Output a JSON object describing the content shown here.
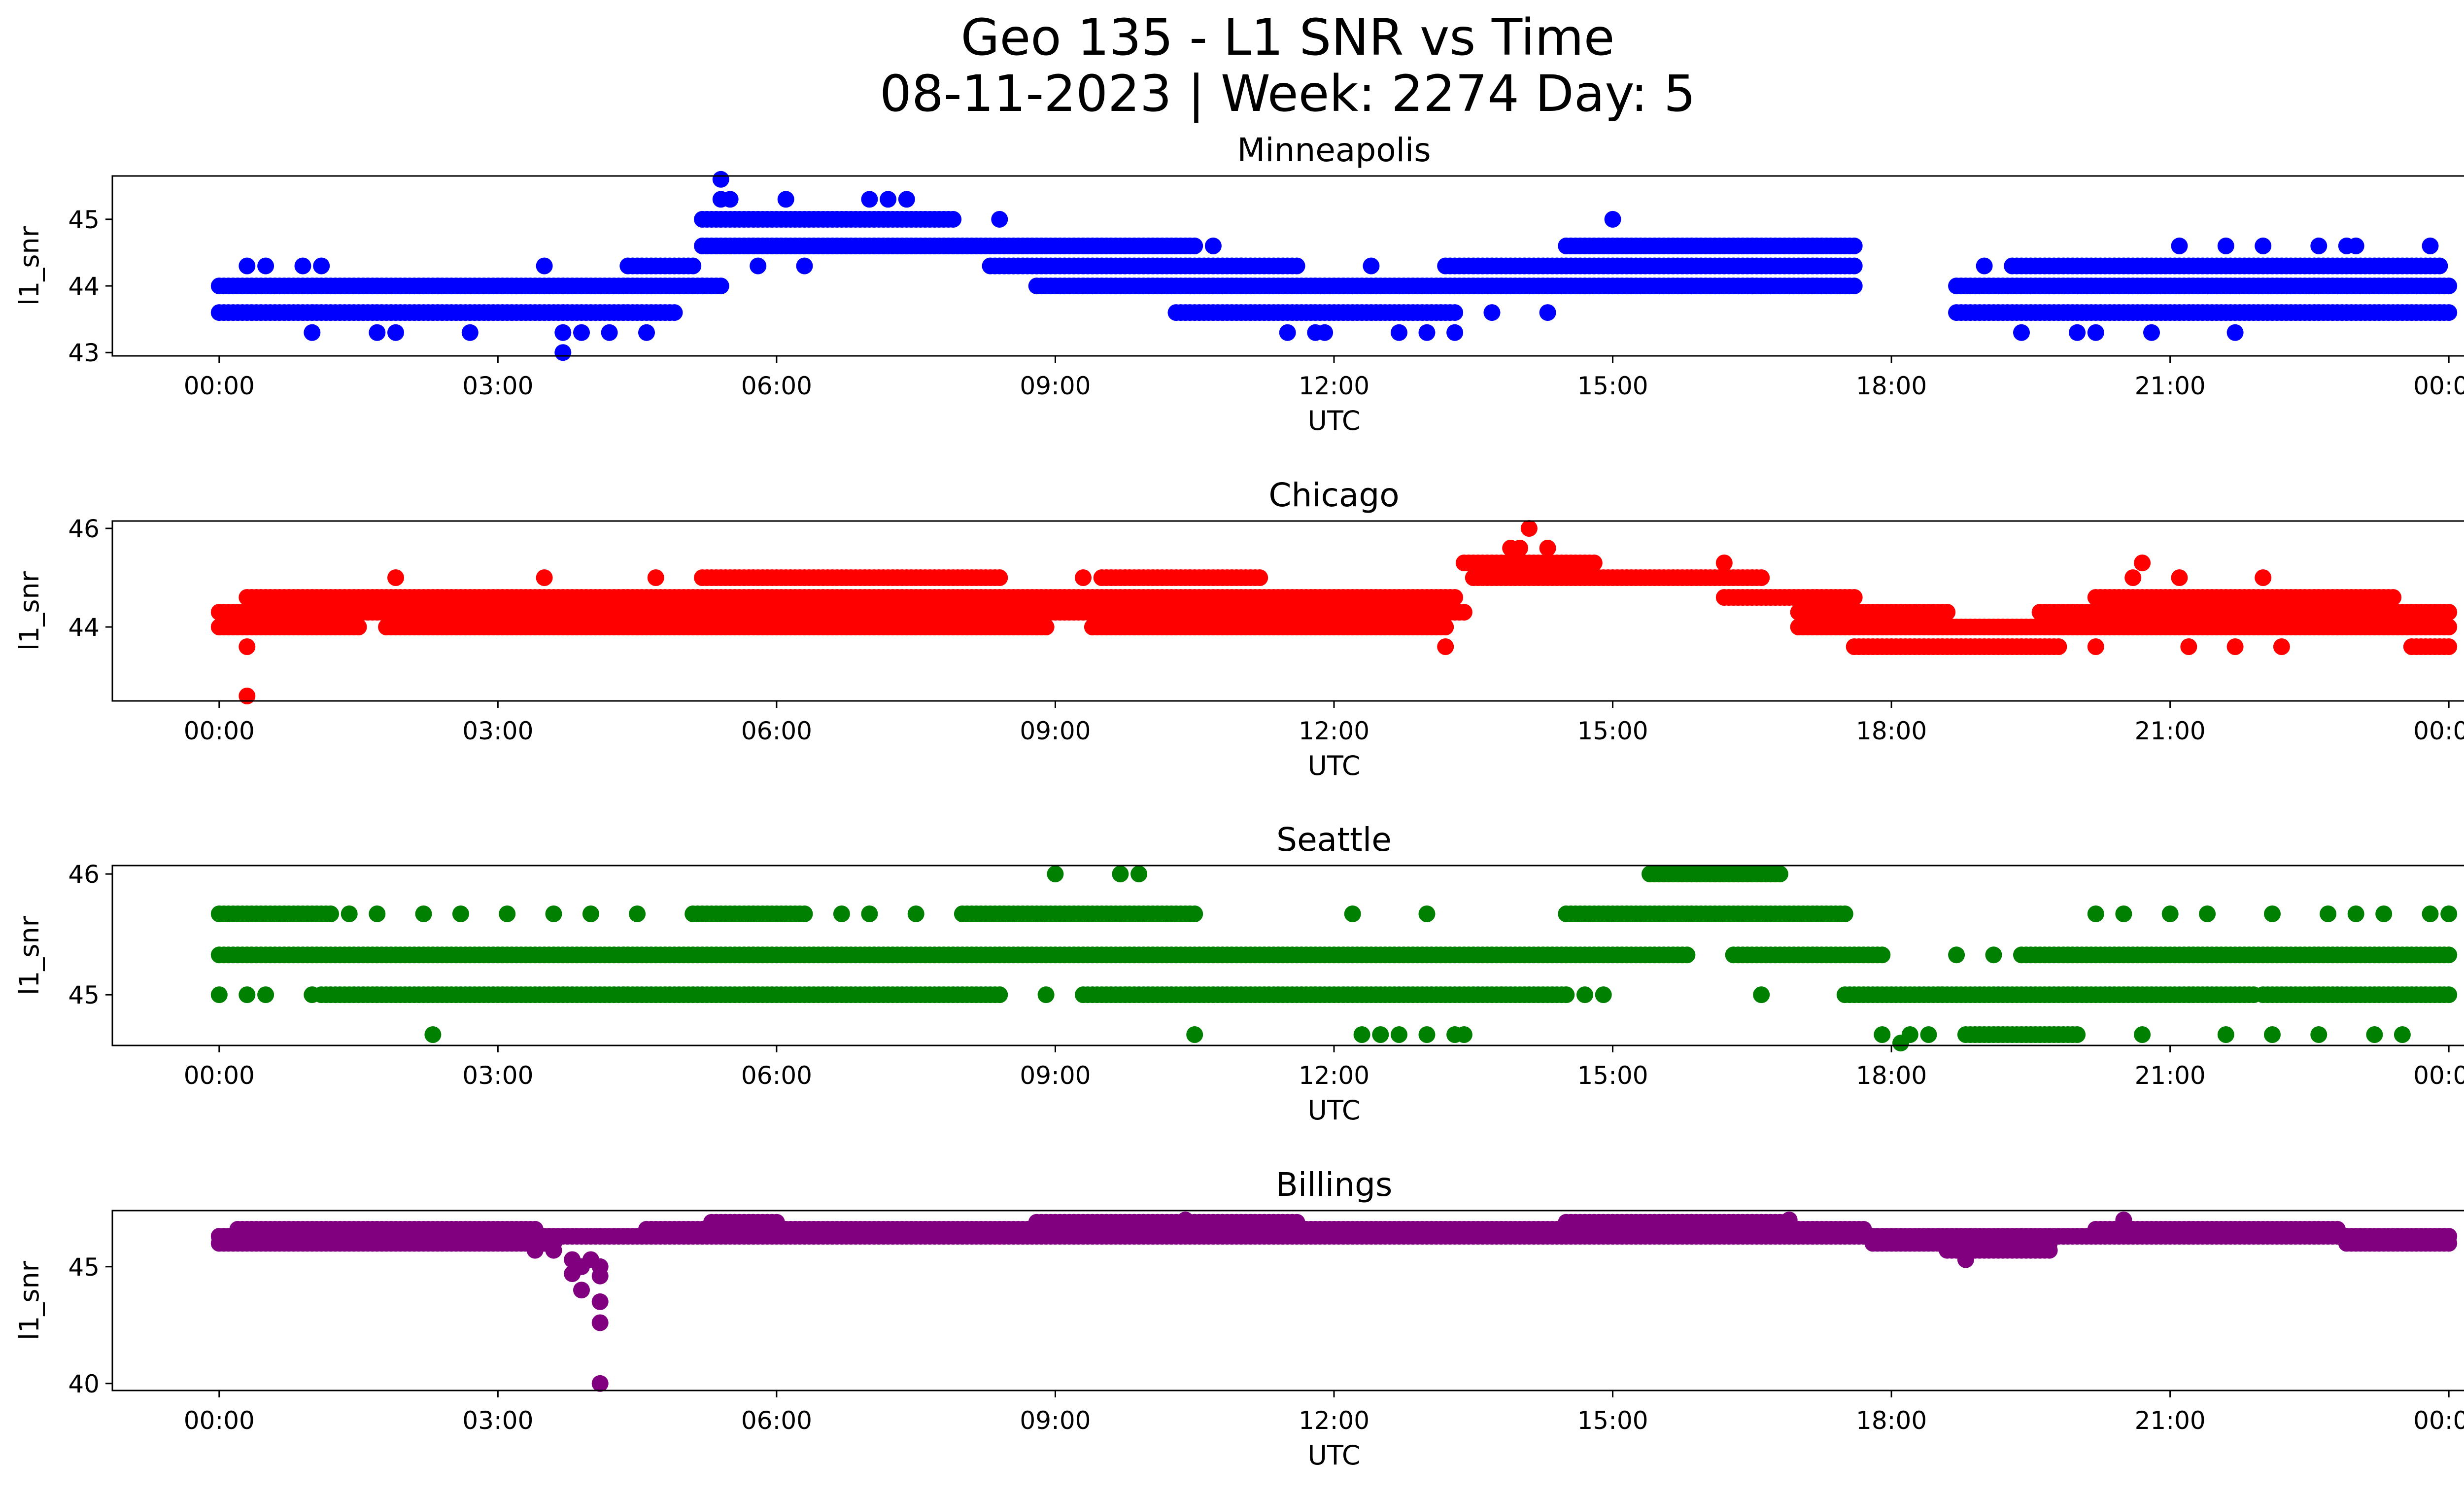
{
  "figure_title": "Geo 135 - L1 SNR vs Time",
  "figure_subtitle": "08-11-2023 | Week: 2274 Day: 5",
  "chart_data": [
    {
      "type": "scatter",
      "title": "Minneapolis",
      "xlabel": "UTC",
      "ylabel": "l1_snr",
      "color": "#0000ff",
      "x_ticks": [
        "00:00",
        "03:00",
        "06:00",
        "09:00",
        "12:00",
        "15:00",
        "18:00",
        "21:00",
        "00:00"
      ],
      "y_ticks": [
        43,
        44,
        45
      ],
      "xlim_hours": [
        -1.15,
        25.15
      ],
      "ylim": [
        42.95,
        45.65
      ],
      "series": [
        {
          "y": 44.0,
          "segments": [
            [
              0.0,
              5.2
            ],
            [
              5.2,
              5.4
            ],
            [
              8.8,
              17.6
            ],
            [
              18.7,
              24.0
            ]
          ]
        },
        {
          "y": 43.6,
          "segments": [
            [
              0.0,
              4.9
            ],
            [
              10.3,
              13.3
            ],
            [
              18.7,
              24.0
            ]
          ]
        },
        {
          "y": 44.3,
          "segments": [
            [
              4.4,
              5.1
            ],
            [
              8.3,
              11.6
            ],
            [
              13.2,
              17.6
            ],
            [
              19.3,
              23.9
            ]
          ]
        },
        {
          "y": 44.6,
          "segments": [
            [
              5.2,
              10.5
            ],
            [
              14.5,
              17.6
            ]
          ]
        },
        {
          "y": 45.0,
          "segments": [
            [
              5.2,
              7.9
            ]
          ]
        }
      ],
      "scatter_points": [
        {
          "x": 0.3,
          "y": 44.3
        },
        {
          "x": 0.5,
          "y": 44.3
        },
        {
          "x": 0.9,
          "y": 44.3
        },
        {
          "x": 1.1,
          "y": 44.3
        },
        {
          "x": 3.5,
          "y": 44.3
        },
        {
          "x": 19.0,
          "y": 44.3
        },
        {
          "x": 1.0,
          "y": 43.3
        },
        {
          "x": 1.7,
          "y": 43.3
        },
        {
          "x": 1.9,
          "y": 43.3
        },
        {
          "x": 2.7,
          "y": 43.3
        },
        {
          "x": 3.7,
          "y": 43.3
        },
        {
          "x": 3.9,
          "y": 43.3
        },
        {
          "x": 4.2,
          "y": 43.3
        },
        {
          "x": 4.6,
          "y": 43.3
        },
        {
          "x": 11.5,
          "y": 43.3
        },
        {
          "x": 11.8,
          "y": 43.3
        },
        {
          "x": 11.9,
          "y": 43.3
        },
        {
          "x": 12.7,
          "y": 43.3
        },
        {
          "x": 13.0,
          "y": 43.3
        },
        {
          "x": 13.3,
          "y": 43.3
        },
        {
          "x": 19.4,
          "y": 43.3
        },
        {
          "x": 20.0,
          "y": 43.3
        },
        {
          "x": 20.2,
          "y": 43.3
        },
        {
          "x": 20.8,
          "y": 43.3
        },
        {
          "x": 21.7,
          "y": 43.3
        },
        {
          "x": 3.7,
          "y": 43.0
        },
        {
          "x": 5.4,
          "y": 45.3
        },
        {
          "x": 5.5,
          "y": 45.3
        },
        {
          "x": 5.4,
          "y": 45.6
        },
        {
          "x": 6.1,
          "y": 45.3
        },
        {
          "x": 7.0,
          "y": 45.3
        },
        {
          "x": 7.2,
          "y": 45.3
        },
        {
          "x": 7.4,
          "y": 45.3
        },
        {
          "x": 8.4,
          "y": 45.0
        },
        {
          "x": 15.0,
          "y": 45.0
        },
        {
          "x": 5.8,
          "y": 44.3
        },
        {
          "x": 6.3,
          "y": 44.3
        },
        {
          "x": 10.7,
          "y": 44.6
        },
        {
          "x": 21.1,
          "y": 44.6
        },
        {
          "x": 21.6,
          "y": 44.6
        },
        {
          "x": 22.0,
          "y": 44.6
        },
        {
          "x": 22.6,
          "y": 44.6
        },
        {
          "x": 22.9,
          "y": 44.6
        },
        {
          "x": 23.0,
          "y": 44.6
        },
        {
          "x": 23.8,
          "y": 44.6
        },
        {
          "x": 12.4,
          "y": 44.3
        },
        {
          "x": 11.0,
          "y": 44.3
        },
        {
          "x": 13.7,
          "y": 43.6
        },
        {
          "x": 14.3,
          "y": 43.6
        },
        {
          "x": 16.5,
          "y": 44.0
        }
      ]
    },
    {
      "type": "scatter",
      "title": "Chicago",
      "xlabel": "UTC",
      "ylabel": "l1_snr",
      "color": "#ff0000",
      "x_ticks": [
        "00:00",
        "03:00",
        "06:00",
        "09:00",
        "12:00",
        "15:00",
        "18:00",
        "21:00",
        "00:00"
      ],
      "y_ticks": [
        44,
        46
      ],
      "xlim_hours": [
        -1.15,
        25.15
      ],
      "ylim": [
        42.5,
        46.15
      ],
      "series": [
        {
          "y": 44.3,
          "segments": [
            [
              0.0,
              13.4
            ],
            [
              17.0,
              18.6
            ],
            [
              19.6,
              24.0
            ]
          ]
        },
        {
          "y": 44.0,
          "segments": [
            [
              0.0,
              1.5
            ],
            [
              1.8,
              8.9
            ],
            [
              9.4,
              13.2
            ],
            [
              17.0,
              24.0
            ]
          ]
        },
        {
          "y": 44.6,
          "segments": [
            [
              0.3,
              13.3
            ],
            [
              16.2,
              17.6
            ],
            [
              20.2,
              23.4
            ]
          ]
        },
        {
          "y": 45.0,
          "segments": [
            [
              5.2,
              8.4
            ],
            [
              9.5,
              11.2
            ],
            [
              13.5,
              16.6
            ]
          ]
        },
        {
          "y": 45.3,
          "segments": [
            [
              13.4,
              14.8
            ]
          ]
        },
        {
          "y": 43.6,
          "segments": [
            [
              17.6,
              19.8
            ],
            [
              23.6,
              24.0
            ]
          ]
        }
      ],
      "scatter_points": [
        {
          "x": 1.9,
          "y": 45.0
        },
        {
          "x": 3.5,
          "y": 45.0
        },
        {
          "x": 4.7,
          "y": 45.0
        },
        {
          "x": 9.3,
          "y": 45.0
        },
        {
          "x": 20.7,
          "y": 45.3
        },
        {
          "x": 20.6,
          "y": 45.0
        },
        {
          "x": 21.1,
          "y": 45.0
        },
        {
          "x": 22.0,
          "y": 45.0
        },
        {
          "x": 16.2,
          "y": 45.3
        },
        {
          "x": 14.1,
          "y": 46.0
        },
        {
          "x": 13.9,
          "y": 45.6
        },
        {
          "x": 14.0,
          "y": 45.6
        },
        {
          "x": 14.3,
          "y": 45.6
        },
        {
          "x": 0.3,
          "y": 43.6
        },
        {
          "x": 0.3,
          "y": 42.6
        },
        {
          "x": 13.2,
          "y": 43.6
        },
        {
          "x": 20.2,
          "y": 43.6
        },
        {
          "x": 21.2,
          "y": 43.6
        },
        {
          "x": 21.7,
          "y": 43.6
        },
        {
          "x": 22.2,
          "y": 43.6
        },
        {
          "x": 4.5,
          "y": 44.0
        },
        {
          "x": 8.8,
          "y": 44.0
        }
      ]
    },
    {
      "type": "scatter",
      "title": "Seattle",
      "xlabel": "UTC",
      "ylabel": "l1_snr",
      "color": "#008000",
      "x_ticks": [
        "00:00",
        "03:00",
        "06:00",
        "09:00",
        "12:00",
        "15:00",
        "18:00",
        "21:00",
        "00:00"
      ],
      "y_ticks": [
        45,
        46
      ],
      "xlim_hours": [
        -1.15,
        25.15
      ],
      "ylim": [
        44.58,
        46.07
      ],
      "series": [
        {
          "y": 45.33,
          "segments": [
            [
              0.0,
              15.8
            ],
            [
              16.3,
              17.9
            ],
            [
              19.4,
              24.0
            ]
          ]
        },
        {
          "y": 45.0,
          "segments": [
            [
              1.1,
              8.4
            ],
            [
              9.3,
              14.5
            ],
            [
              17.5,
              21.9
            ],
            [
              22.0,
              24.0
            ]
          ]
        },
        {
          "y": 45.67,
          "segments": [
            [
              0.0,
              1.2
            ],
            [
              5.1,
              6.3
            ],
            [
              8.0,
              10.5
            ],
            [
              14.5,
              17.5
            ]
          ]
        },
        {
          "y": 46.0,
          "segments": [
            [
              15.4,
              16.8
            ]
          ]
        },
        {
          "y": 44.67,
          "segments": [
            [
              18.8,
              20.0
            ]
          ]
        }
      ],
      "scatter_points": [
        {
          "x": 0.0,
          "y": 45.0
        },
        {
          "x": 0.3,
          "y": 45.0
        },
        {
          "x": 0.5,
          "y": 45.0
        },
        {
          "x": 1.0,
          "y": 45.0
        },
        {
          "x": 8.9,
          "y": 45.0
        },
        {
          "x": 14.7,
          "y": 45.0
        },
        {
          "x": 14.9,
          "y": 45.0
        },
        {
          "x": 16.6,
          "y": 45.0
        },
        {
          "x": 1.4,
          "y": 45.67
        },
        {
          "x": 1.7,
          "y": 45.67
        },
        {
          "x": 2.2,
          "y": 45.67
        },
        {
          "x": 2.6,
          "y": 45.67
        },
        {
          "x": 3.1,
          "y": 45.67
        },
        {
          "x": 3.6,
          "y": 45.67
        },
        {
          "x": 4.0,
          "y": 45.67
        },
        {
          "x": 4.5,
          "y": 45.67
        },
        {
          "x": 6.7,
          "y": 45.67
        },
        {
          "x": 7.0,
          "y": 45.67
        },
        {
          "x": 7.5,
          "y": 45.67
        },
        {
          "x": 12.2,
          "y": 45.67
        },
        {
          "x": 13.0,
          "y": 45.67
        },
        {
          "x": 20.2,
          "y": 45.67
        },
        {
          "x": 20.5,
          "y": 45.67
        },
        {
          "x": 21.0,
          "y": 45.67
        },
        {
          "x": 21.4,
          "y": 45.67
        },
        {
          "x": 22.1,
          "y": 45.67
        },
        {
          "x": 22.7,
          "y": 45.67
        },
        {
          "x": 23.0,
          "y": 45.67
        },
        {
          "x": 23.3,
          "y": 45.67
        },
        {
          "x": 23.8,
          "y": 45.67
        },
        {
          "x": 24.0,
          "y": 45.67
        },
        {
          "x": 9.0,
          "y": 46.0
        },
        {
          "x": 9.7,
          "y": 46.0
        },
        {
          "x": 9.9,
          "y": 46.0
        },
        {
          "x": 2.3,
          "y": 44.67
        },
        {
          "x": 10.5,
          "y": 44.67
        },
        {
          "x": 12.3,
          "y": 44.67
        },
        {
          "x": 12.5,
          "y": 44.67
        },
        {
          "x": 12.7,
          "y": 44.67
        },
        {
          "x": 13.0,
          "y": 44.67
        },
        {
          "x": 13.3,
          "y": 44.67
        },
        {
          "x": 13.4,
          "y": 44.67
        },
        {
          "x": 17.9,
          "y": 44.67
        },
        {
          "x": 18.2,
          "y": 44.67
        },
        {
          "x": 18.4,
          "y": 44.67
        },
        {
          "x": 20.7,
          "y": 44.67
        },
        {
          "x": 21.6,
          "y": 44.67
        },
        {
          "x": 22.1,
          "y": 44.67
        },
        {
          "x": 22.6,
          "y": 44.67
        },
        {
          "x": 23.2,
          "y": 44.67
        },
        {
          "x": 23.5,
          "y": 44.67
        },
        {
          "x": 18.1,
          "y": 44.6
        },
        {
          "x": 18.7,
          "y": 45.33
        },
        {
          "x": 19.1,
          "y": 45.33
        }
      ]
    },
    {
      "type": "scatter",
      "title": "Billings",
      "xlabel": "UTC",
      "ylabel": "l1_snr",
      "color": "#800080",
      "x_ticks": [
        "00:00",
        "03:00",
        "06:00",
        "09:00",
        "12:00",
        "15:00",
        "18:00",
        "21:00",
        "00:00"
      ],
      "y_ticks": [
        40,
        45
      ],
      "xlim_hours": [
        -1.15,
        25.15
      ],
      "ylim": [
        39.7,
        47.4
      ],
      "series": [
        {
          "y": 46.0,
          "segments": [
            [
              0.0,
              3.6
            ],
            [
              17.8,
              19.7
            ],
            [
              22.9,
              24.0
            ]
          ]
        },
        {
          "y": 46.3,
          "segments": [
            [
              0.0,
              24.0
            ]
          ]
        },
        {
          "y": 46.6,
          "segments": [
            [
              0.2,
              3.4
            ],
            [
              4.6,
              9.5
            ],
            [
              9.6,
              17.7
            ],
            [
              20.2,
              22.8
            ]
          ]
        },
        {
          "y": 46.9,
          "segments": [
            [
              5.3,
              6.0
            ],
            [
              8.8,
              11.6
            ],
            [
              14.5,
              16.9
            ]
          ]
        },
        {
          "y": 45.7,
          "segments": [
            [
              18.6,
              19.7
            ]
          ]
        }
      ],
      "scatter_points": [
        {
          "x": 3.4,
          "y": 45.7
        },
        {
          "x": 3.6,
          "y": 45.7
        },
        {
          "x": 3.8,
          "y": 45.3
        },
        {
          "x": 3.9,
          "y": 45.0
        },
        {
          "x": 3.8,
          "y": 44.7
        },
        {
          "x": 4.0,
          "y": 45.3
        },
        {
          "x": 4.1,
          "y": 45.0
        },
        {
          "x": 4.1,
          "y": 44.6
        },
        {
          "x": 3.9,
          "y": 44.0
        },
        {
          "x": 4.1,
          "y": 43.5
        },
        {
          "x": 4.1,
          "y": 42.6
        },
        {
          "x": 4.1,
          "y": 40.0
        },
        {
          "x": 18.8,
          "y": 45.3
        },
        {
          "x": 20.5,
          "y": 47.0
        },
        {
          "x": 10.4,
          "y": 47.0
        },
        {
          "x": 16.9,
          "y": 47.0
        }
      ]
    }
  ]
}
